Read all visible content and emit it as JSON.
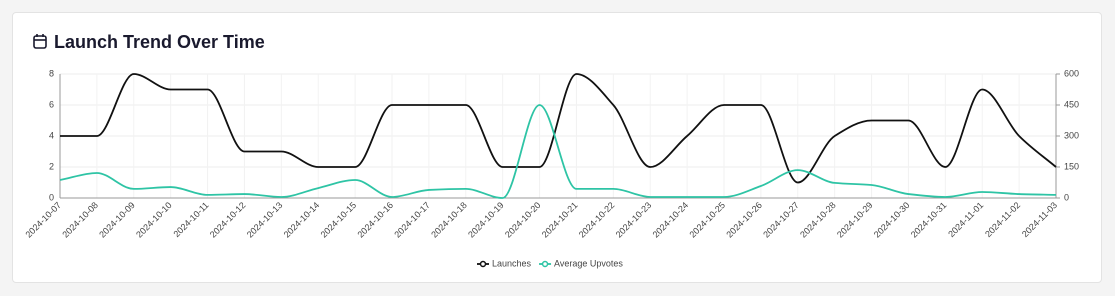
{
  "chart_data": {
    "type": "line",
    "title": "Launch Trend Over Time",
    "categories": [
      "2024-10-07",
      "2024-10-08",
      "2024-10-09",
      "2024-10-10",
      "2024-10-11",
      "2024-10-12",
      "2024-10-13",
      "2024-10-14",
      "2024-10-15",
      "2024-10-16",
      "2024-10-17",
      "2024-10-18",
      "2024-10-19",
      "2024-10-20",
      "2024-10-21",
      "2024-10-22",
      "2024-10-23",
      "2024-10-24",
      "2024-10-25",
      "2024-10-26",
      "2024-10-27",
      "2024-10-28",
      "2024-10-29",
      "2024-10-30",
      "2024-10-31",
      "2024-11-01",
      "2024-11-02",
      "2024-11-03"
    ],
    "series": [
      {
        "name": "Launches",
        "color": "#111111",
        "values": [
          4,
          4,
          8,
          7,
          7,
          3,
          3,
          2,
          2,
          6,
          6,
          6,
          2,
          2,
          8,
          6,
          2,
          4,
          6,
          6,
          1,
          4,
          5,
          5,
          2,
          7,
          4,
          2
        ]
      },
      {
        "name": "Average Upvotes",
        "color": "#2ec4a5",
        "axis": "y2",
        "values": [
          87,
          121,
          44,
          53,
          15,
          19,
          5,
          48,
          87,
          5,
          39,
          44,
          0,
          450,
          44,
          44,
          5,
          5,
          5,
          58,
          135,
          73,
          63,
          19,
          5,
          29,
          19,
          15
        ]
      }
    ],
    "ylim": [
      0,
      8
    ],
    "yticks": [
      0,
      2,
      4,
      6,
      8
    ],
    "y2lim": [
      0,
      600
    ],
    "y2ticks": [
      0,
      150,
      300,
      450,
      600
    ],
    "grid": true,
    "legend": "bottom"
  }
}
